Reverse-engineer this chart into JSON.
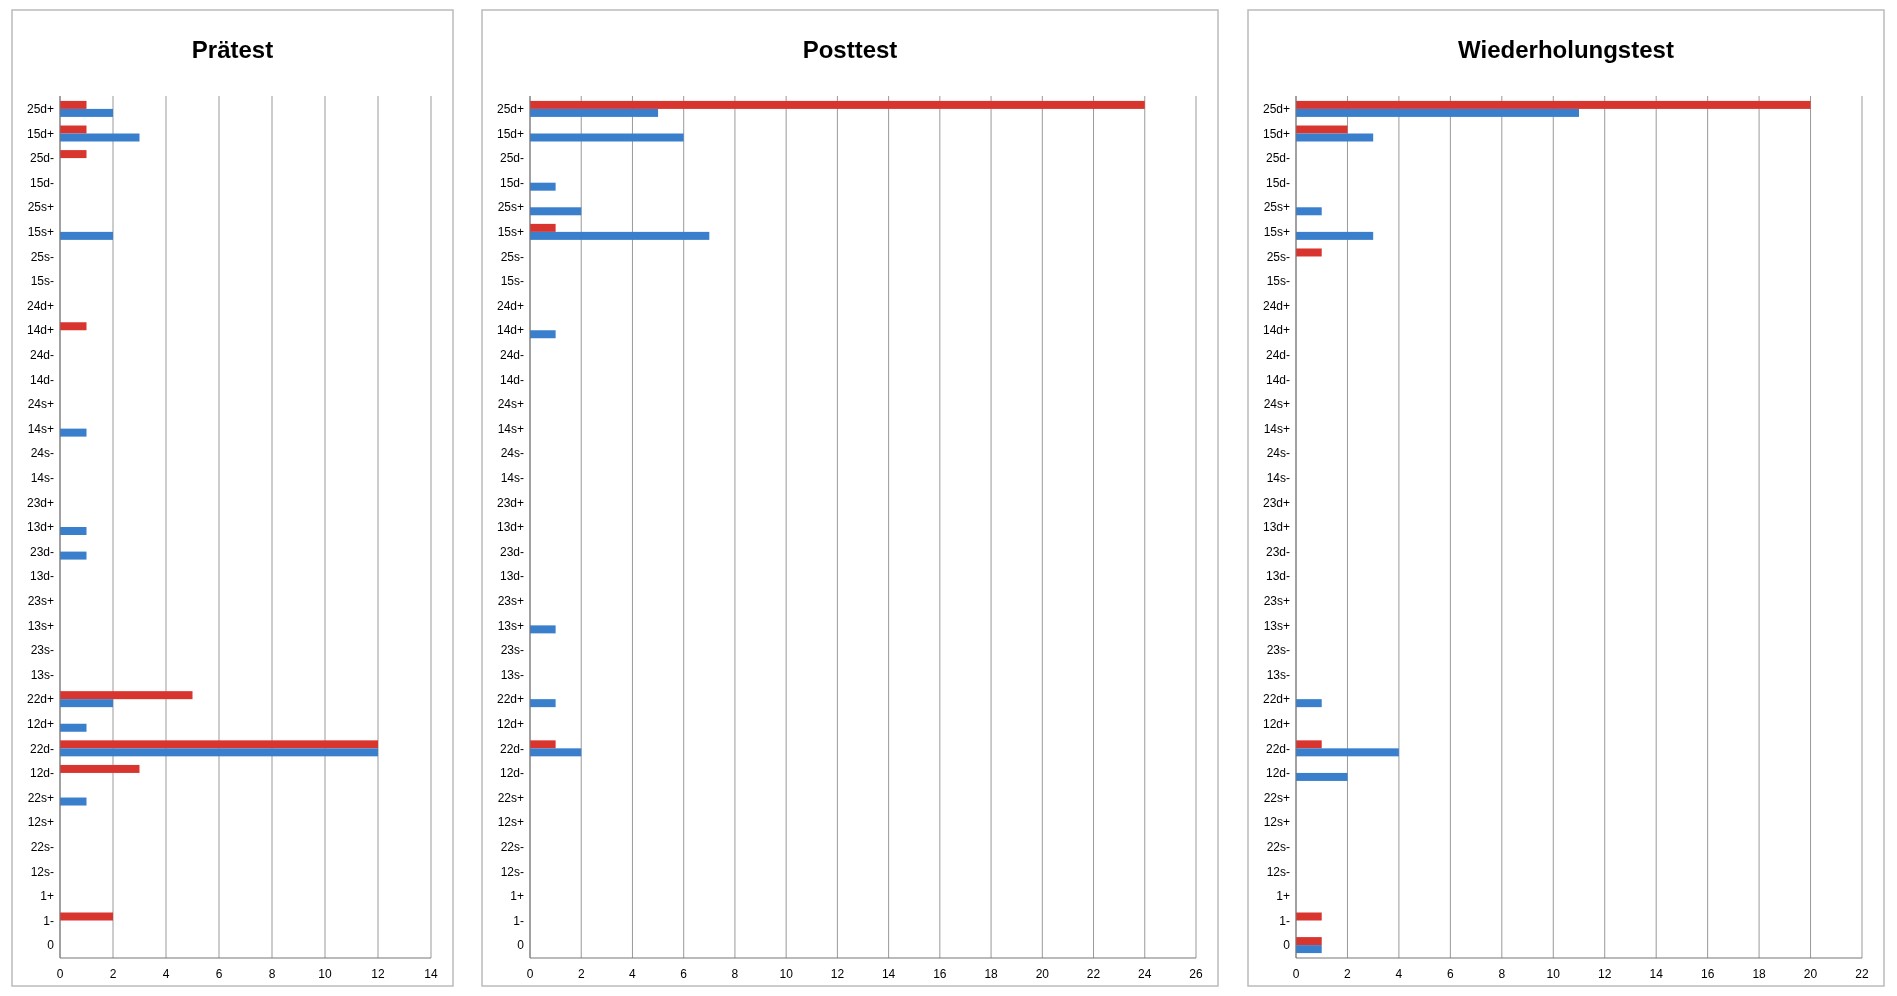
{
  "chart_data": [
    {
      "type": "bar",
      "title": "Prätest",
      "orientation": "horizontal",
      "grid": "x",
      "categories": [
        "25d+",
        "15d+",
        "25d-",
        "15d-",
        "25s+",
        "15s+",
        "25s-",
        "15s-",
        "24d+",
        "14d+",
        "24d-",
        "14d-",
        "24s+",
        "14s+",
        "24s-",
        "14s-",
        "23d+",
        "13d+",
        "23d-",
        "13d-",
        "23s+",
        "13s+",
        "23s-",
        "13s-",
        "22d+",
        "12d+",
        "22d-",
        "12d-",
        "22s+",
        "12s+",
        "22s-",
        "12s-",
        "1+",
        "1-",
        "0"
      ],
      "series": [
        {
          "color": "#d9352f",
          "values": [
            1,
            1,
            1,
            0,
            0,
            0,
            0,
            0,
            0,
            1,
            0,
            0,
            0,
            0,
            0,
            0,
            0,
            0,
            0,
            0,
            0,
            0,
            0,
            0,
            5,
            0,
            12,
            3,
            0,
            0,
            0,
            0,
            0,
            2,
            0
          ]
        },
        {
          "color": "#3a7fcc",
          "values": [
            2,
            3,
            0,
            0,
            0,
            2,
            0,
            0,
            0,
            0,
            0,
            0,
            0,
            1,
            0,
            0,
            0,
            1,
            1,
            0,
            0,
            0,
            0,
            0,
            2,
            1,
            12,
            0,
            1,
            0,
            0,
            0,
            0,
            0,
            0
          ]
        }
      ],
      "xlim": [
        0,
        14
      ],
      "xticks": [
        0,
        2,
        4,
        6,
        8,
        10,
        12,
        14
      ]
    },
    {
      "type": "bar",
      "title": "Posttest",
      "orientation": "horizontal",
      "grid": "x",
      "categories": [
        "25d+",
        "15d+",
        "25d-",
        "15d-",
        "25s+",
        "15s+",
        "25s-",
        "15s-",
        "24d+",
        "14d+",
        "24d-",
        "14d-",
        "24s+",
        "14s+",
        "24s-",
        "14s-",
        "23d+",
        "13d+",
        "23d-",
        "13d-",
        "23s+",
        "13s+",
        "23s-",
        "13s-",
        "22d+",
        "12d+",
        "22d-",
        "12d-",
        "22s+",
        "12s+",
        "22s-",
        "12s-",
        "1+",
        "1-",
        "0"
      ],
      "series": [
        {
          "color": "#d9352f",
          "values": [
            24,
            0,
            0,
            0,
            0,
            1,
            0,
            0,
            0,
            0,
            0,
            0,
            0,
            0,
            0,
            0,
            0,
            0,
            0,
            0,
            0,
            0,
            0,
            0,
            0,
            0,
            1,
            0,
            0,
            0,
            0,
            0,
            0,
            0,
            0
          ]
        },
        {
          "color": "#3a7fcc",
          "values": [
            5,
            6,
            0,
            1,
            2,
            7,
            0,
            0,
            0,
            1,
            0,
            0,
            0,
            0,
            0,
            0,
            0,
            0,
            0,
            0,
            0,
            1,
            0,
            0,
            1,
            0,
            2,
            0,
            0,
            0,
            0,
            0,
            0,
            0,
            0
          ]
        }
      ],
      "xlim": [
        0,
        26
      ],
      "xticks": [
        0,
        2,
        4,
        6,
        8,
        10,
        12,
        14,
        16,
        18,
        20,
        22,
        24,
        26
      ]
    },
    {
      "type": "bar",
      "title": "Wiederholungstest",
      "orientation": "horizontal",
      "grid": "x",
      "categories": [
        "25d+",
        "15d+",
        "25d-",
        "15d-",
        "25s+",
        "15s+",
        "25s-",
        "15s-",
        "24d+",
        "14d+",
        "24d-",
        "14d-",
        "24s+",
        "14s+",
        "24s-",
        "14s-",
        "23d+",
        "13d+",
        "23d-",
        "13d-",
        "23s+",
        "13s+",
        "23s-",
        "13s-",
        "22d+",
        "12d+",
        "22d-",
        "12d-",
        "22s+",
        "12s+",
        "22s-",
        "12s-",
        "1+",
        "1-",
        "0"
      ],
      "series": [
        {
          "color": "#d9352f",
          "values": [
            20,
            2,
            0,
            0,
            0,
            0,
            1,
            0,
            0,
            0,
            0,
            0,
            0,
            0,
            0,
            0,
            0,
            0,
            0,
            0,
            0,
            0,
            0,
            0,
            0,
            0,
            1,
            0,
            0,
            0,
            0,
            0,
            0,
            1,
            1
          ]
        },
        {
          "color": "#3a7fcc",
          "values": [
            11,
            3,
            0,
            0,
            1,
            3,
            0,
            0,
            0,
            0,
            0,
            0,
            0,
            0,
            0,
            0,
            0,
            0,
            0,
            0,
            0,
            0,
            0,
            0,
            1,
            0,
            4,
            2,
            0,
            0,
            0,
            0,
            0,
            0,
            1
          ]
        }
      ],
      "xlim": [
        0,
        22
      ],
      "xticks": [
        0,
        2,
        4,
        6,
        8,
        10,
        12,
        14,
        16,
        18,
        20,
        22
      ]
    }
  ]
}
